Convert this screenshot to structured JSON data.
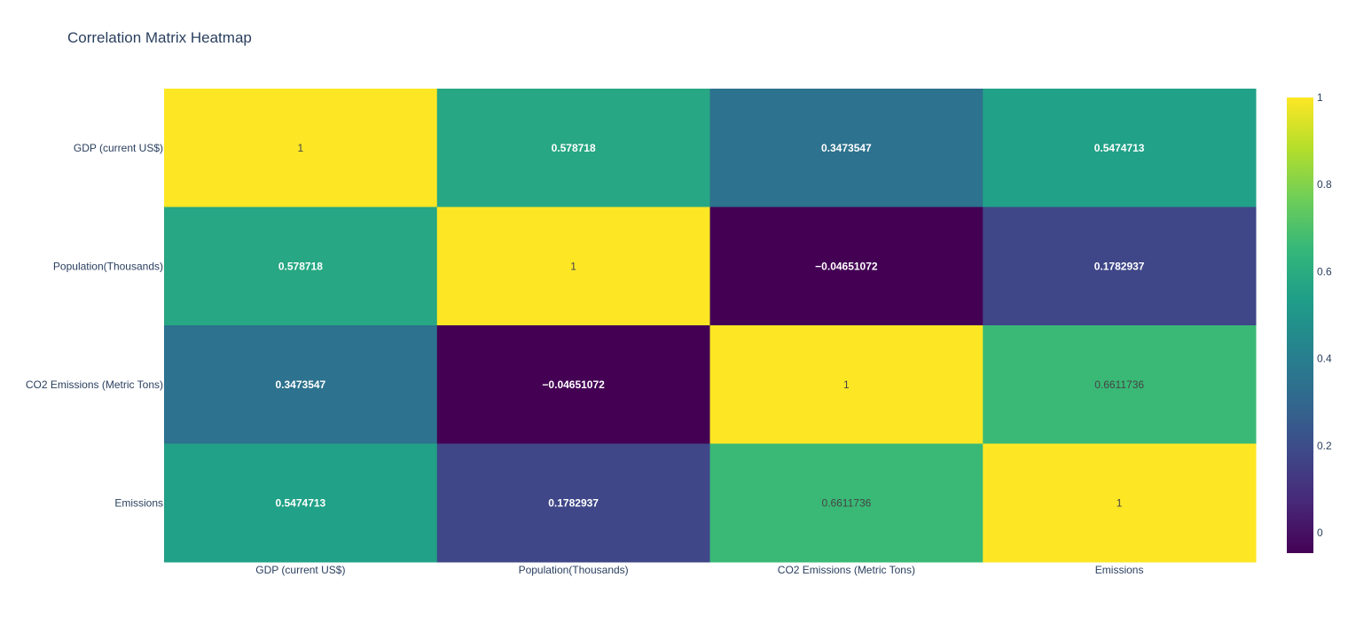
{
  "chart_data": {
    "type": "heatmap",
    "title": "Correlation Matrix Heatmap",
    "x_categories": [
      "GDP (current US$)",
      "Population(Thousands)",
      "CO2 Emissions (Metric Tons)",
      "Emissions"
    ],
    "y_categories": [
      "GDP (current US$)",
      "Population(Thousands)",
      "CO2 Emissions (Metric Tons)",
      "Emissions"
    ],
    "z": [
      [
        1,
        0.578718,
        0.3473547,
        0.5474713
      ],
      [
        0.578718,
        1,
        -0.04651072,
        0.1782937
      ],
      [
        0.3473547,
        -0.04651072,
        1,
        0.6611736
      ],
      [
        0.5474713,
        0.1782937,
        0.6611736,
        1
      ]
    ],
    "z_labels": [
      [
        "1",
        "0.578718",
        "0.3473547",
        "0.5474713"
      ],
      [
        "0.578718",
        "1",
        "−0.04651072",
        "0.1782937"
      ],
      [
        "0.3473547",
        "−0.04651072",
        "1",
        "0.6611736"
      ],
      [
        "0.5474713",
        "0.1782937",
        "0.6611736",
        "1"
      ]
    ],
    "zmin": -0.04651072,
    "zmax": 1,
    "colorscale": "Viridis",
    "colorbar": {
      "tick_values": [
        0,
        0.2,
        0.4,
        0.6,
        0.8,
        1
      ],
      "tick_labels": [
        "0",
        "0.2",
        "0.4",
        "0.6",
        "0.8",
        "1"
      ]
    }
  }
}
